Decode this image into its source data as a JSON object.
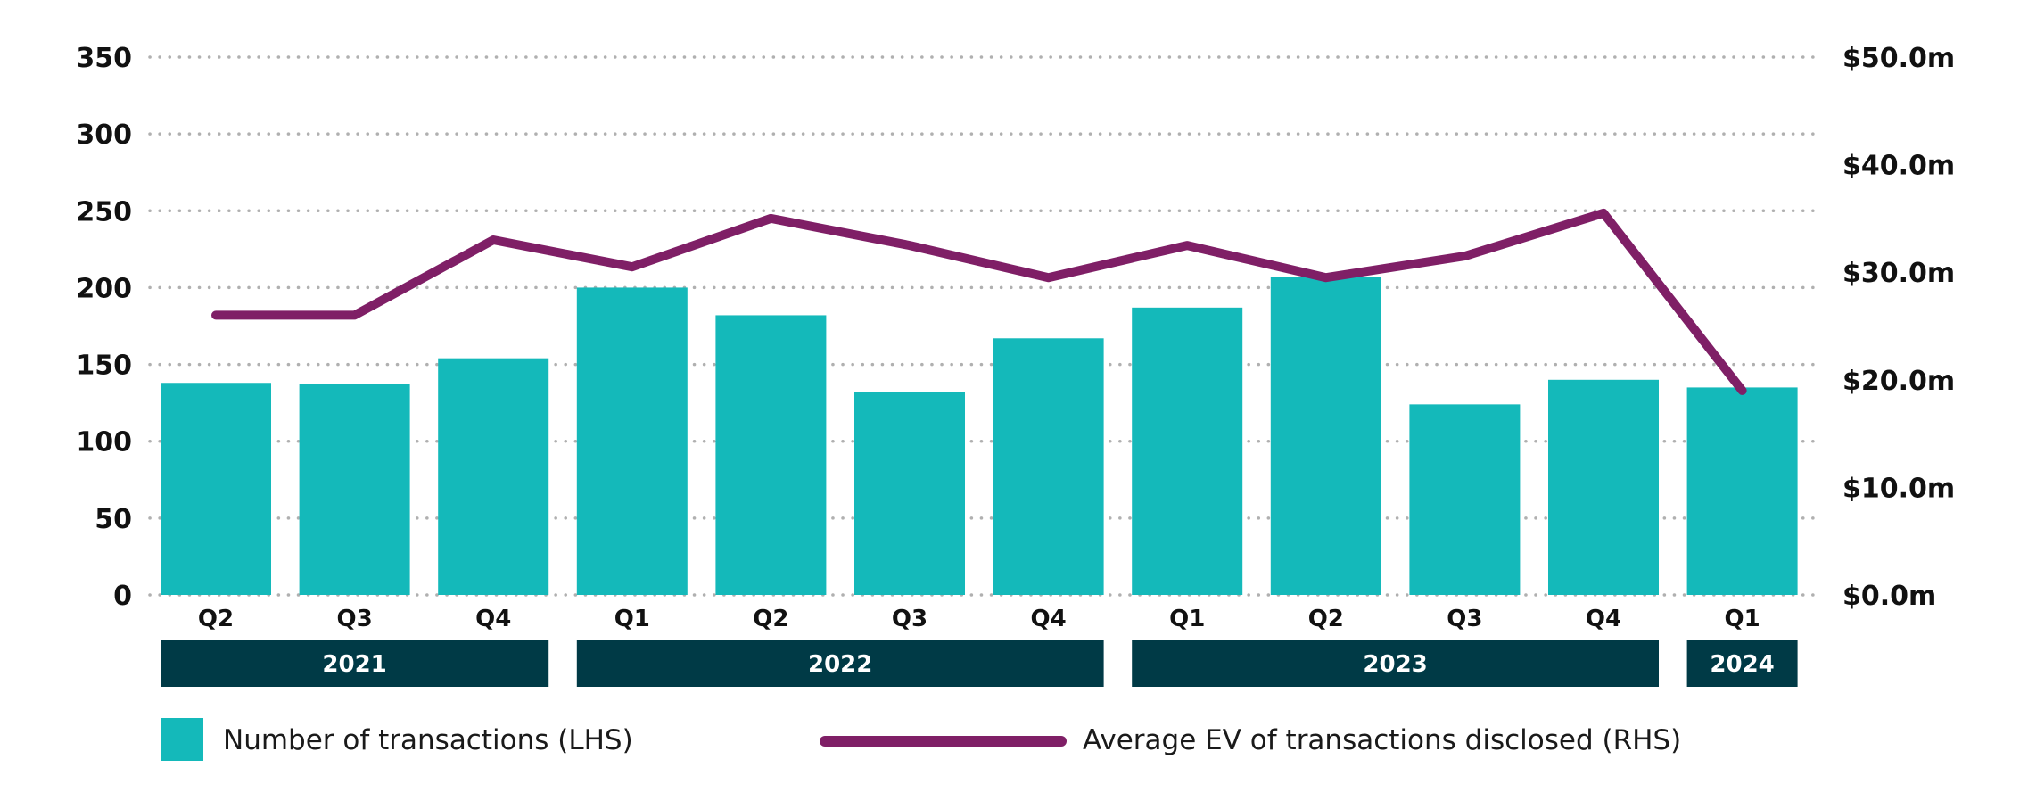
{
  "colors": {
    "bar": "#14B9BA",
    "line": "#7F1F66",
    "year_band": "#003A46",
    "grid": "#B0B0B0",
    "text": "#111111"
  },
  "legend": {
    "bars_label": "Number of transactions (LHS)",
    "line_label": "Average EV of transactions disclosed (RHS)"
  },
  "chart_data": {
    "type": "bar",
    "title": "",
    "xlabel": "",
    "ylabel": "",
    "categories": [
      "Q2",
      "Q3",
      "Q4",
      "Q1",
      "Q2",
      "Q3",
      "Q4",
      "Q1",
      "Q2",
      "Q3",
      "Q4",
      "Q1"
    ],
    "years": [
      {
        "label": "2021",
        "span": 3
      },
      {
        "label": "2022",
        "span": 4
      },
      {
        "label": "2023",
        "span": 4
      },
      {
        "label": "2024",
        "span": 1
      }
    ],
    "left_axis": {
      "ylim": [
        0,
        350
      ],
      "ticks": [
        {
          "value": 0,
          "label": "0"
        },
        {
          "value": 50,
          "label": "50"
        },
        {
          "value": 100,
          "label": "100"
        },
        {
          "value": 150,
          "label": "150"
        },
        {
          "value": 200,
          "label": "200"
        },
        {
          "value": 250,
          "label": "250"
        },
        {
          "value": 300,
          "label": "300"
        },
        {
          "value": 350,
          "label": "350"
        }
      ]
    },
    "right_axis": {
      "ylim": [
        0,
        50
      ],
      "ticks": [
        {
          "value": 0,
          "label": "$0.0m"
        },
        {
          "value": 10,
          "label": "$10.0m"
        },
        {
          "value": 20,
          "label": "$20.0m"
        },
        {
          "value": 30,
          "label": "$30.0m"
        },
        {
          "value": 40,
          "label": "$40.0m"
        },
        {
          "value": 50,
          "label": "$50.0m"
        }
      ]
    },
    "grid": true,
    "legend_position": "bottom",
    "series": [
      {
        "name": "Number of transactions (LHS)",
        "type": "bar",
        "axis": "left",
        "values": [
          138,
          137,
          154,
          200,
          182,
          132,
          167,
          187,
          207,
          124,
          140,
          135
        ]
      },
      {
        "name": "Average EV of transactions disclosed (RHS)",
        "type": "line",
        "axis": "right",
        "values": [
          26.0,
          26.0,
          33.0,
          30.5,
          35.0,
          32.5,
          29.5,
          32.5,
          29.5,
          31.5,
          35.5,
          19.0
        ]
      }
    ]
  }
}
